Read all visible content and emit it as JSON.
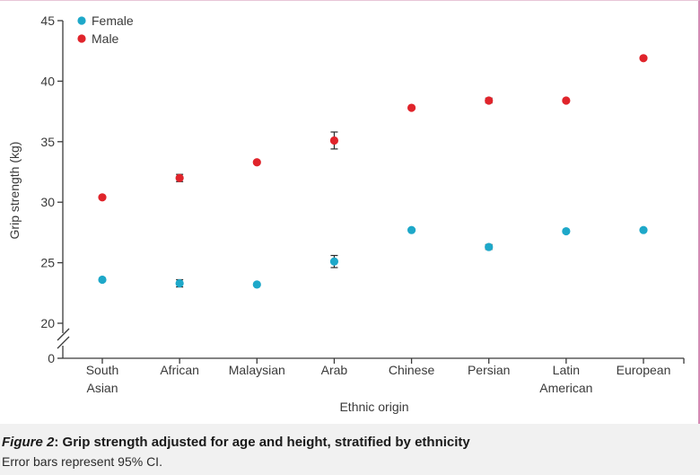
{
  "chart_data": {
    "type": "scatter",
    "xlabel": "Ethnic origin",
    "ylabel": "Grip strength (kg)",
    "categories": [
      "South Asian",
      "African",
      "Malaysian",
      "Arab",
      "Chinese",
      "Persian",
      "Latin American",
      "European"
    ],
    "category_lines": [
      [
        "South",
        "Asian"
      ],
      [
        "African"
      ],
      [
        "Malaysian"
      ],
      [
        "Arab"
      ],
      [
        "Chinese"
      ],
      [
        "Persian"
      ],
      [
        "Latin",
        "American"
      ],
      [
        "European"
      ]
    ],
    "yticks": [
      0,
      20,
      25,
      30,
      35,
      40,
      45
    ],
    "ylim": [
      20,
      45
    ],
    "axis_break": true,
    "legend_placement": "top-left",
    "series": [
      {
        "name": "Female",
        "color": "#1ea8c9",
        "values": [
          23.6,
          23.3,
          23.2,
          25.1,
          27.7,
          26.3,
          27.6,
          27.7
        ],
        "ci_low": [
          23.5,
          23.0,
          23.1,
          24.6,
          27.6,
          26.1,
          27.5,
          27.6
        ],
        "ci_high": [
          23.7,
          23.6,
          23.3,
          25.6,
          27.8,
          26.5,
          27.7,
          27.8
        ]
      },
      {
        "name": "Male",
        "color": "#e0242b",
        "values": [
          30.4,
          32.0,
          33.3,
          35.1,
          37.8,
          38.4,
          38.4,
          41.9
        ],
        "ci_low": [
          30.3,
          31.7,
          33.2,
          34.4,
          37.7,
          38.2,
          38.3,
          41.8
        ],
        "ci_high": [
          30.5,
          32.3,
          33.4,
          35.8,
          37.9,
          38.6,
          38.5,
          42.0
        ]
      }
    ]
  },
  "caption": {
    "label": "Figure 2",
    "title": ": Grip strength adjusted for age and height, stratified by ethnicity",
    "note": "Error bars represent 95% CI."
  }
}
